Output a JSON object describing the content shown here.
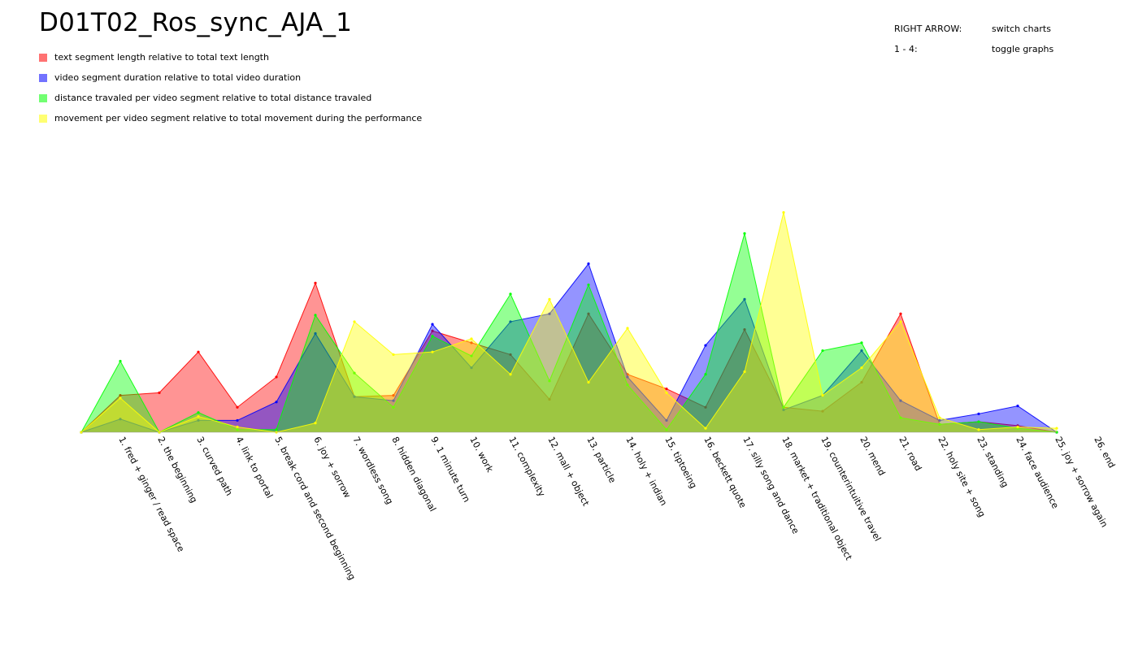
{
  "title": "D01T02_Ros_sync_AJA_1",
  "help": [
    {
      "key": "RIGHT ARROW:",
      "action": "switch charts"
    },
    {
      "key": "1 - 4:",
      "action": "toggle graphs"
    }
  ],
  "chart_data": {
    "type": "area",
    "title": "D01T02_Ros_sync_AJA_1",
    "xlabel": "",
    "ylabel": "",
    "ylim": [
      0,
      0.1
    ],
    "grid": false,
    "legend_position": "top-left",
    "categories": [
      "1. fred + ginger / read space",
      "2. the beginning",
      "3. curved path",
      "4. link to portal",
      "5. break cord and second beginning",
      "6. joy + sorrow",
      "7. wordless song",
      "8. hidden diagonal",
      "9. 1 minute turn",
      "10. work",
      "11. complexity",
      "12. mall + object",
      "13. particle",
      "14. holy + indian",
      "15. tiptoeing",
      "16. beckett quote",
      "17. silly song and dance",
      "18. market + traditional object",
      "19. counterintuitive travel",
      "20. mend",
      "21. road",
      "22. holy site + song",
      "23. standing",
      "24. face audience",
      "25. joy + sorrow again",
      "26. end"
    ],
    "series": [
      {
        "name": "text segment length relative to total text length",
        "color": "#ff0000",
        "values": [
          0.0,
          0.0168,
          0.018,
          0.0366,
          0.0114,
          0.0252,
          0.068,
          0.0162,
          0.0168,
          0.0462,
          0.0408,
          0.0354,
          0.015,
          0.054,
          0.0264,
          0.0198,
          0.0114,
          0.0468,
          0.0114,
          0.0096,
          0.0228,
          0.054,
          0.0036,
          0.0048,
          0.003,
          0.0
        ]
      },
      {
        "name": "video segment duration relative to total video duration",
        "color": "#0000ff",
        "values": [
          0.0,
          0.006,
          0.0,
          0.0054,
          0.0054,
          0.0138,
          0.045,
          0.0162,
          0.0144,
          0.0492,
          0.0294,
          0.0504,
          0.054,
          0.0768,
          0.0252,
          0.0054,
          0.0396,
          0.0606,
          0.0102,
          0.0168,
          0.0372,
          0.0144,
          0.0054,
          0.0084,
          0.012,
          0.0
        ]
      },
      {
        "name": "distance travaled per video segment relative to total distance travaled",
        "color": "#00ff00",
        "values": [
          0.0,
          0.0324,
          0.0,
          0.009,
          0.0012,
          0.0012,
          0.0534,
          0.027,
          0.0114,
          0.0438,
          0.0348,
          0.063,
          0.0234,
          0.0672,
          0.0216,
          0.0012,
          0.0264,
          0.0906,
          0.0114,
          0.0372,
          0.0408,
          0.0066,
          0.0036,
          0.0048,
          0.0018,
          0.0
        ]
      },
      {
        "name": "movement per video segment relative to total movement during the performance",
        "color": "#ffff00",
        "values": [
          0.0,
          0.0156,
          0.0,
          0.0072,
          0.0024,
          0.0,
          0.0042,
          0.0504,
          0.0354,
          0.0366,
          0.0426,
          0.0264,
          0.0606,
          0.0228,
          0.0474,
          0.018,
          0.0018,
          0.0276,
          0.1002,
          0.0168,
          0.0294,
          0.0504,
          0.0066,
          0.0012,
          0.0024,
          0.0018
        ]
      }
    ]
  }
}
